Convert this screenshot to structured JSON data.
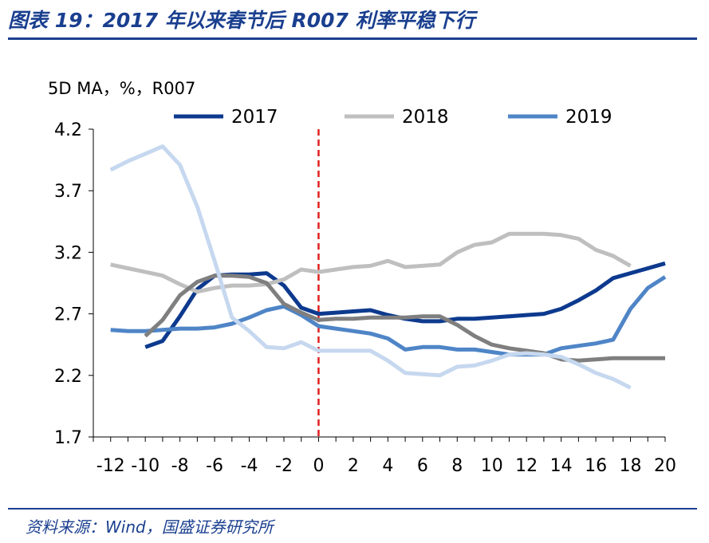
{
  "header": {
    "title": "图表 19：2017 年以来春节后 R007 利率平稳下行"
  },
  "footer": {
    "source": "资料来源：Wind，国盛证券研究所"
  },
  "chart_data": {
    "type": "line",
    "unit_label": "5D MA，%，R007",
    "ylim": [
      1.7,
      4.2
    ],
    "yticks": [
      1.7,
      2.2,
      2.7,
      3.2,
      3.7,
      4.2
    ],
    "ytick_labels": [
      "1.7",
      "2.2",
      "2.7",
      "3.2",
      "3.7",
      "4.2"
    ],
    "xlim": [
      -13,
      20
    ],
    "xticks": [
      -12,
      -10,
      -8,
      -6,
      -4,
      -2,
      0,
      2,
      4,
      6,
      8,
      10,
      12,
      14,
      16,
      18,
      20
    ],
    "xtick_labels": [
      "-12",
      "-10",
      "-8",
      "-6",
      "-4",
      "-2",
      "0",
      "2",
      "4",
      "6",
      "8",
      "10",
      "12",
      "14",
      "16",
      "18",
      "20"
    ],
    "reference_line_x": 0,
    "reference_line_color": "#e02020",
    "legend_position": "top",
    "legend": [
      "2017",
      "2018",
      "2019"
    ],
    "series": [
      {
        "name": "2017",
        "color": "#0d3a8e",
        "x": [
          -10,
          -9,
          -8,
          -7,
          -6,
          -5,
          -4,
          -3,
          -2,
          -1,
          0,
          1,
          2,
          3,
          4,
          5,
          6,
          7,
          8,
          9,
          10,
          11,
          12,
          13,
          14,
          15,
          16,
          17,
          18,
          19,
          20
        ],
        "values": [
          2.43,
          2.48,
          2.68,
          2.9,
          3.01,
          3.02,
          3.02,
          3.03,
          2.93,
          2.75,
          2.7,
          2.71,
          2.72,
          2.73,
          2.69,
          2.66,
          2.64,
          2.64,
          2.66,
          2.66,
          2.67,
          2.68,
          2.69,
          2.7,
          2.74,
          2.81,
          2.89,
          2.99,
          3.03,
          3.07,
          3.11
        ]
      },
      {
        "name": "2018",
        "color": "#bfbfbf",
        "x": [
          -12,
          -11,
          -10,
          -9,
          -8,
          -7,
          -6,
          -5,
          -4,
          -3,
          -2,
          -1,
          0,
          1,
          2,
          3,
          4,
          5,
          6,
          7,
          8,
          9,
          10,
          11,
          12,
          13,
          14,
          15,
          16,
          17,
          18
        ],
        "values": [
          3.1,
          3.07,
          3.04,
          3.01,
          2.94,
          2.88,
          2.91,
          2.93,
          2.93,
          2.94,
          2.98,
          3.06,
          3.04,
          3.06,
          3.08,
          3.09,
          3.13,
          3.08,
          3.09,
          3.1,
          3.2,
          3.26,
          3.28,
          3.35,
          3.35,
          3.35,
          3.34,
          3.31,
          3.22,
          3.17,
          3.09
        ]
      },
      {
        "name": "2019",
        "color": "#4f85c7",
        "x": [
          -12,
          -11,
          -10,
          -9,
          -8,
          -7,
          -6,
          -5,
          -4,
          -3,
          -2,
          -1,
          0,
          1,
          2,
          3,
          4,
          5,
          6,
          7,
          8,
          9,
          10,
          11,
          12,
          13,
          14,
          15,
          16,
          17,
          18,
          19,
          20
        ],
        "values": [
          2.57,
          2.56,
          2.56,
          2.57,
          2.58,
          2.58,
          2.59,
          2.62,
          2.67,
          2.73,
          2.76,
          2.69,
          2.6,
          2.58,
          2.56,
          2.54,
          2.5,
          2.41,
          2.43,
          2.43,
          2.41,
          2.41,
          2.39,
          2.37,
          2.37,
          2.37,
          2.42,
          2.44,
          2.46,
          2.49,
          2.74,
          2.91,
          3.0
        ]
      },
      {
        "name": "",
        "color": "#7f7f7f",
        "x": [
          -10,
          -9,
          -8,
          -7,
          -6,
          -5,
          -4,
          -3,
          -2,
          -1,
          0,
          1,
          2,
          3,
          4,
          5,
          6,
          7,
          8,
          9,
          10,
          11,
          12,
          13,
          14,
          15,
          16,
          17,
          18,
          19,
          20
        ],
        "values": [
          2.52,
          2.65,
          2.85,
          2.96,
          3.01,
          3.01,
          3.0,
          2.95,
          2.78,
          2.71,
          2.65,
          2.66,
          2.66,
          2.67,
          2.67,
          2.67,
          2.68,
          2.68,
          2.61,
          2.52,
          2.45,
          2.42,
          2.4,
          2.38,
          2.33,
          2.32,
          2.33,
          2.34,
          2.34,
          2.34,
          2.34
        ]
      },
      {
        "name": "",
        "color": "#c6d8ef",
        "x": [
          -12,
          -11,
          -10,
          -9,
          -8,
          -7,
          -6,
          -5,
          -4,
          -3,
          -2,
          -1,
          0,
          1,
          2,
          3,
          4,
          5,
          6,
          7,
          8,
          9,
          10,
          11,
          12,
          13,
          14,
          15,
          16,
          17,
          18
        ],
        "values": [
          3.87,
          3.94,
          4.0,
          4.06,
          3.91,
          3.57,
          3.13,
          2.67,
          2.56,
          2.43,
          2.42,
          2.47,
          2.4,
          2.4,
          2.4,
          2.4,
          2.32,
          2.22,
          2.21,
          2.2,
          2.27,
          2.28,
          2.32,
          2.37,
          2.38,
          2.37,
          2.35,
          2.29,
          2.22,
          2.17,
          2.1
        ]
      }
    ]
  }
}
